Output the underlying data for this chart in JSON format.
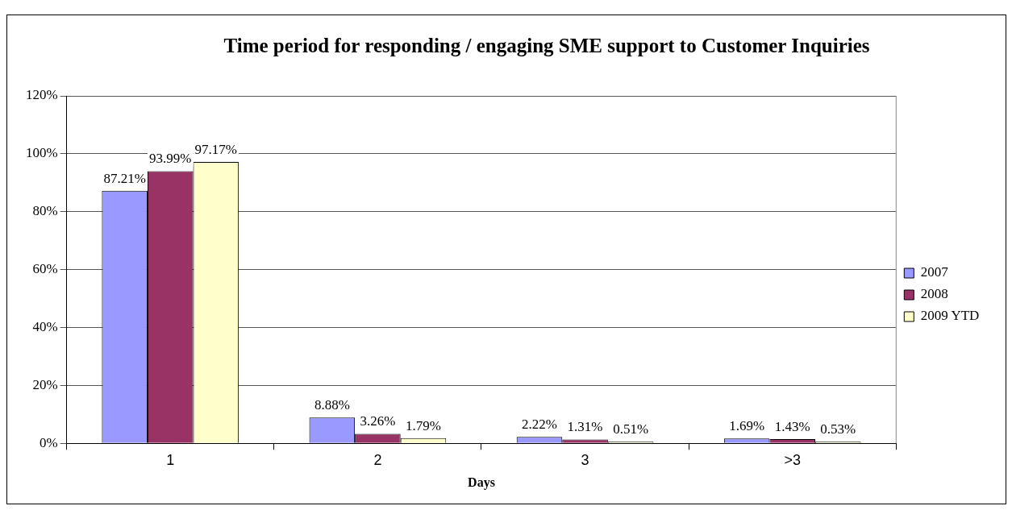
{
  "chart_data": {
    "type": "bar",
    "title": "Time period for responding / engaging SME support to Customer Inquiries",
    "xlabel": "Days",
    "categories": [
      "1",
      "2",
      "3",
      ">3"
    ],
    "series": [
      {
        "name": "2007",
        "color": "#9999ff",
        "values": [
          87.21,
          8.88,
          2.22,
          1.69
        ],
        "value_labels": [
          "87.21%",
          "8.88%",
          "2.22%",
          "1.69%"
        ]
      },
      {
        "name": "2008",
        "color": "#993366",
        "values": [
          93.99,
          3.26,
          1.31,
          1.43
        ],
        "value_labels": [
          "93.99%",
          "3.26%",
          "1.31%",
          "1.43%"
        ]
      },
      {
        "name": "2009 YTD",
        "color": "#ffffcc",
        "values": [
          97.17,
          1.79,
          0.51,
          0.53
        ],
        "value_labels": [
          "97.17%",
          "1.79%",
          "0.51%",
          "0.53%"
        ]
      }
    ],
    "ylim": [
      0,
      120
    ],
    "yticks": [
      {
        "value": 0,
        "label": "0%"
      },
      {
        "value": 20,
        "label": "20%"
      },
      {
        "value": 40,
        "label": "40%"
      },
      {
        "value": 60,
        "label": "60%"
      },
      {
        "value": 80,
        "label": "80%"
      },
      {
        "value": 100,
        "label": "100%"
      },
      {
        "value": 120,
        "label": "120%"
      }
    ],
    "grid": "y",
    "legend": "right"
  }
}
